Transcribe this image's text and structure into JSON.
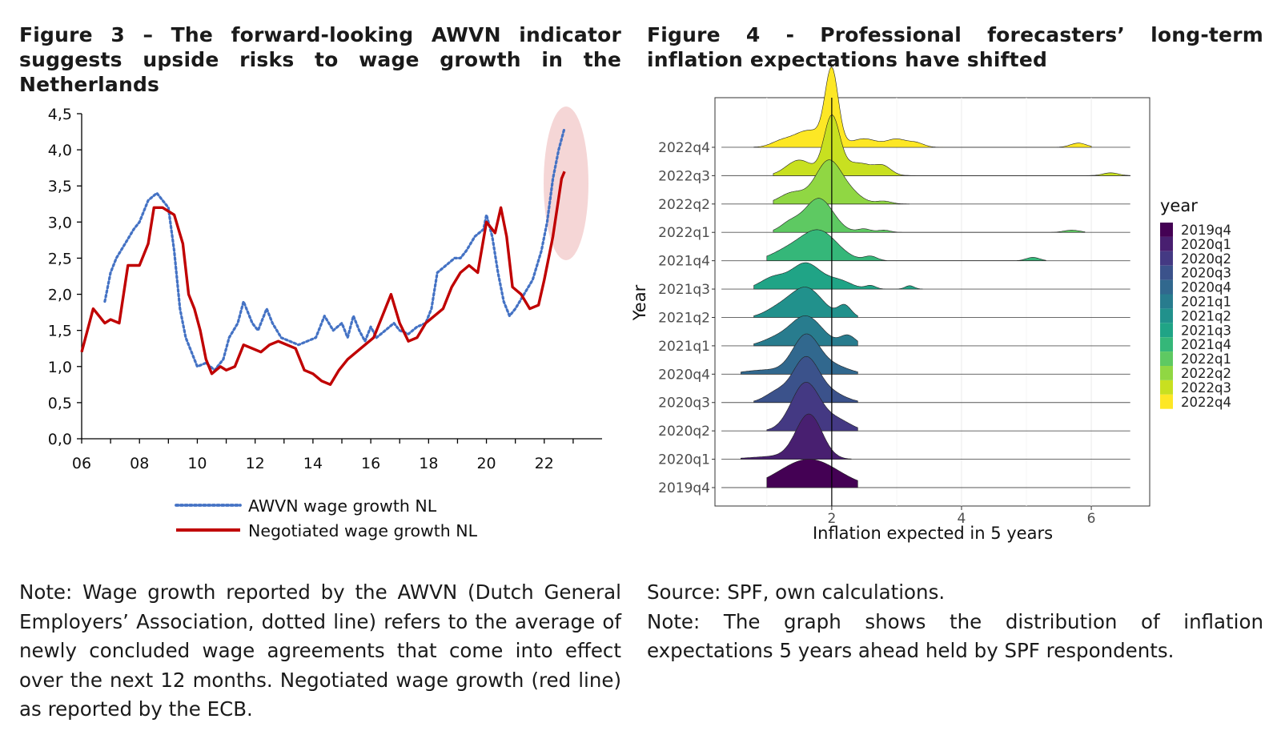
{
  "figure3": {
    "title": "Figure 3 – The forward-looking AWVN indicator suggests upside risks to wage growth in the Netherlands",
    "note": "Note: Wage growth reported by the AWVN (Dutch General Employers’ Association, dotted line) refers to the average of newly concluded wage agreements that come into effect over the next 12 months. Negotiated wage growth (red line) as reported by the ECB."
  },
  "figure4": {
    "title": "Figure 4 - Professional forecasters’ long-term inflation expectations have shifted",
    "source": "Source: SPF, own calculations.",
    "note": "Note: The graph shows the distribution of inflation expectations 5 years ahead held by SPF respondents."
  },
  "chart_data": [
    {
      "type": "line",
      "title": "Figure 3 – The forward-looking AWVN indicator suggests upside risks to wage growth in the Netherlands",
      "xlabel": "",
      "ylabel": "",
      "xlim": [
        2006,
        2024
      ],
      "ylim": [
        0,
        4.5
      ],
      "x_ticks": [
        2006,
        2008,
        2010,
        2012,
        2014,
        2016,
        2018,
        2020,
        2022
      ],
      "x_tick_labels": [
        "06",
        "08",
        "10",
        "12",
        "14",
        "16",
        "18",
        "20",
        "22"
      ],
      "y_ticks": [
        0,
        0.5,
        1,
        1.5,
        2,
        2.5,
        3,
        3.5,
        4,
        4.5
      ],
      "y_tick_labels": [
        "0,0",
        "0,5",
        "1,0",
        "1,5",
        "2,0",
        "2,5",
        "3,0",
        "3,5",
        "4,0",
        "4,5"
      ],
      "legend": "bottom",
      "annotation": "highlight ellipse around 2022 end of series",
      "series": [
        {
          "name": "AWVN wage growth NL",
          "color": "#4472c4",
          "style": "dotted",
          "x": [
            2006.8,
            2007.0,
            2007.2,
            2007.5,
            2007.8,
            2008.0,
            2008.3,
            2008.6,
            2008.8,
            2009.0,
            2009.2,
            2009.4,
            2009.6,
            2009.8,
            2010.0,
            2010.3,
            2010.6,
            2010.9,
            2011.1,
            2011.4,
            2011.6,
            2011.9,
            2012.1,
            2012.4,
            2012.6,
            2012.9,
            2013.2,
            2013.5,
            2013.8,
            2014.1,
            2014.4,
            2014.7,
            2015.0,
            2015.2,
            2015.4,
            2015.6,
            2015.8,
            2016.0,
            2016.2,
            2016.5,
            2016.8,
            2017.0,
            2017.3,
            2017.6,
            2017.9,
            2018.1,
            2018.3,
            2018.6,
            2018.9,
            2019.1,
            2019.3,
            2019.6,
            2019.9,
            2020.0,
            2020.2,
            2020.4,
            2020.6,
            2020.8,
            2021.0,
            2021.3,
            2021.6,
            2021.9,
            2022.1,
            2022.3,
            2022.5,
            2022.7
          ],
          "values": [
            1.9,
            2.3,
            2.5,
            2.7,
            2.9,
            3.0,
            3.3,
            3.4,
            3.3,
            3.2,
            2.6,
            1.8,
            1.4,
            1.2,
            1.0,
            1.05,
            0.95,
            1.1,
            1.4,
            1.6,
            1.9,
            1.6,
            1.5,
            1.8,
            1.6,
            1.4,
            1.35,
            1.3,
            1.35,
            1.4,
            1.7,
            1.5,
            1.6,
            1.4,
            1.7,
            1.5,
            1.35,
            1.55,
            1.4,
            1.5,
            1.6,
            1.5,
            1.45,
            1.55,
            1.6,
            1.8,
            2.3,
            2.4,
            2.5,
            2.5,
            2.6,
            2.8,
            2.9,
            3.1,
            2.8,
            2.3,
            1.9,
            1.7,
            1.8,
            2.0,
            2.2,
            2.6,
            3.0,
            3.6,
            4.0,
            4.3
          ]
        },
        {
          "name": "Negotiated wage growth NL",
          "color": "#c00000",
          "style": "solid",
          "x": [
            2006.0,
            2006.2,
            2006.4,
            2006.6,
            2006.8,
            2007.0,
            2007.3,
            2007.6,
            2008.0,
            2008.3,
            2008.5,
            2008.8,
            2009.0,
            2009.2,
            2009.5,
            2009.7,
            2009.9,
            2010.1,
            2010.3,
            2010.5,
            2010.8,
            2011.0,
            2011.3,
            2011.6,
            2011.9,
            2012.2,
            2012.5,
            2012.8,
            2013.1,
            2013.4,
            2013.7,
            2014.0,
            2014.3,
            2014.6,
            2014.9,
            2015.2,
            2015.5,
            2015.8,
            2016.1,
            2016.4,
            2016.7,
            2017.0,
            2017.3,
            2017.6,
            2017.9,
            2018.2,
            2018.5,
            2018.8,
            2019.1,
            2019.4,
            2019.7,
            2020.0,
            2020.3,
            2020.5,
            2020.7,
            2020.9,
            2021.2,
            2021.5,
            2021.8,
            2022.0,
            2022.3,
            2022.6,
            2022.7
          ],
          "values": [
            1.2,
            1.5,
            1.8,
            1.7,
            1.6,
            1.65,
            1.6,
            2.4,
            2.4,
            2.7,
            3.2,
            3.2,
            3.15,
            3.1,
            2.7,
            2.0,
            1.8,
            1.5,
            1.1,
            0.9,
            1.0,
            0.95,
            1.0,
            1.3,
            1.25,
            1.2,
            1.3,
            1.35,
            1.3,
            1.25,
            0.95,
            0.9,
            0.8,
            0.75,
            0.95,
            1.1,
            1.2,
            1.3,
            1.4,
            1.7,
            2.0,
            1.6,
            1.35,
            1.4,
            1.6,
            1.7,
            1.8,
            2.1,
            2.3,
            2.4,
            2.3,
            3.0,
            2.85,
            3.2,
            2.8,
            2.1,
            2.0,
            1.8,
            1.85,
            2.2,
            2.8,
            3.6,
            3.7
          ]
        }
      ]
    },
    {
      "type": "ridgeline",
      "title": "Figure 4 - Professional forecasters’ long-term inflation expectations have shifted",
      "xlabel": "Inflation expected in 5 years",
      "ylabel": "Year",
      "xlim": [
        0.2,
        6.9
      ],
      "x_ticks": [
        2,
        4,
        6
      ],
      "x_tick_labels": [
        "2",
        "4",
        "6"
      ],
      "reference_line_x": 2,
      "legend_title": "year",
      "legend": "right",
      "categories": [
        "2019q4",
        "2020q1",
        "2020q2",
        "2020q3",
        "2020q4",
        "2021q1",
        "2021q2",
        "2021q3",
        "2021q4",
        "2022q1",
        "2022q2",
        "2022q3",
        "2022q4"
      ],
      "colors": [
        "#440154",
        "#481f70",
        "#443983",
        "#3b528b",
        "#31688e",
        "#287c8e",
        "#21918c",
        "#20a486",
        "#35b779",
        "#5ec962",
        "#90d743",
        "#c8e020",
        "#fde725"
      ],
      "series": [
        {
          "name": "2019q4",
          "range": [
            1.0,
            2.4
          ],
          "peaks": [
            [
              1.65,
              0.45,
              1.0
            ]
          ]
        },
        {
          "name": "2020q1",
          "range": [
            0.6,
            2.3
          ],
          "peaks": [
            [
              1.65,
              0.2,
              1.55
            ],
            [
              1.15,
              0.4,
              0.1
            ]
          ]
        },
        {
          "name": "2020q2",
          "range": [
            1.0,
            2.4
          ],
          "peaks": [
            [
              1.6,
              0.22,
              1.7
            ],
            [
              2.1,
              0.2,
              0.35
            ]
          ]
        },
        {
          "name": "2020q3",
          "range": [
            0.8,
            2.4
          ],
          "peaks": [
            [
              1.6,
              0.2,
              1.55
            ],
            [
              1.15,
              0.18,
              0.35
            ],
            [
              2.0,
              0.22,
              0.3
            ]
          ]
        },
        {
          "name": "2020q4",
          "range": [
            0.6,
            2.4
          ],
          "peaks": [
            [
              1.6,
              0.2,
              1.3
            ],
            [
              2.0,
              0.25,
              0.3
            ],
            [
              1.0,
              0.35,
              0.15
            ]
          ]
        },
        {
          "name": "2021q1",
          "range": [
            0.8,
            2.4
          ],
          "peaks": [
            [
              1.6,
              0.25,
              1.05
            ],
            [
              2.25,
              0.12,
              0.35
            ],
            [
              1.1,
              0.2,
              0.2
            ]
          ]
        },
        {
          "name": "2021q2",
          "range": [
            0.8,
            2.4
          ],
          "peaks": [
            [
              1.6,
              0.25,
              1.05
            ],
            [
              2.2,
              0.1,
              0.4
            ],
            [
              1.15,
              0.2,
              0.25
            ]
          ]
        },
        {
          "name": "2021q3",
          "range": [
            0.8,
            3.4
          ],
          "peaks": [
            [
              1.6,
              0.22,
              0.9
            ],
            [
              1.1,
              0.2,
              0.4
            ],
            [
              2.1,
              0.2,
              0.3
            ],
            [
              2.6,
              0.08,
              0.12
            ],
            [
              3.2,
              0.07,
              0.12
            ]
          ]
        },
        {
          "name": "2021q4",
          "range": [
            1.0,
            5.3
          ],
          "peaks": [
            [
              1.8,
              0.28,
              1.05
            ],
            [
              1.3,
              0.25,
              0.3
            ],
            [
              2.6,
              0.1,
              0.15
            ],
            [
              5.1,
              0.1,
              0.12
            ]
          ]
        },
        {
          "name": "2022q1",
          "range": [
            1.1,
            5.9
          ],
          "peaks": [
            [
              1.8,
              0.22,
              1.2
            ],
            [
              1.35,
              0.15,
              0.3
            ],
            [
              2.5,
              0.1,
              0.12
            ],
            [
              2.8,
              0.1,
              0.08
            ],
            [
              5.7,
              0.12,
              0.08
            ]
          ]
        },
        {
          "name": "2022q2",
          "range": [
            1.1,
            3.2
          ],
          "peaks": [
            [
              1.95,
              0.2,
              1.5
            ],
            [
              1.4,
              0.2,
              0.4
            ],
            [
              2.3,
              0.18,
              0.3
            ],
            [
              2.8,
              0.12,
              0.1
            ]
          ]
        },
        {
          "name": "2022q3",
          "range": [
            1.1,
            6.6
          ],
          "peaks": [
            [
              2.0,
              0.12,
              2.0
            ],
            [
              1.5,
              0.2,
              0.55
            ],
            [
              2.4,
              0.25,
              0.45
            ],
            [
              2.8,
              0.12,
              0.25
            ],
            [
              6.3,
              0.12,
              0.1
            ]
          ]
        },
        {
          "name": "2022q4",
          "range": [
            0.8,
            6.0
          ],
          "peaks": [
            [
              2.0,
              0.1,
              2.6
            ],
            [
              1.65,
              0.25,
              0.6
            ],
            [
              2.5,
              0.2,
              0.3
            ],
            [
              3.0,
              0.15,
              0.28
            ],
            [
              3.3,
              0.12,
              0.15
            ],
            [
              1.2,
              0.15,
              0.15
            ],
            [
              5.8,
              0.12,
              0.15
            ]
          ]
        }
      ]
    }
  ]
}
